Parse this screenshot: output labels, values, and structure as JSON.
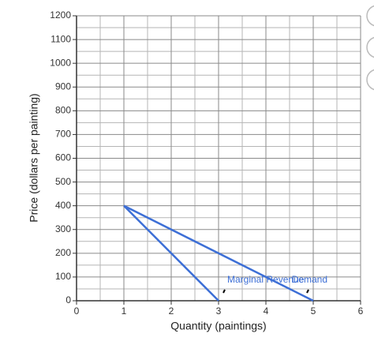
{
  "chart_data": {
    "type": "line",
    "xlabel": "Quantity (paintings)",
    "ylabel": "Price (dollars per painting)",
    "xlim": [
      0,
      6
    ],
    "xticks": [
      0,
      1,
      2,
      3,
      4,
      5,
      6
    ],
    "ylim": [
      0,
      1200
    ],
    "yticks": [
      0,
      100,
      200,
      300,
      400,
      500,
      600,
      700,
      800,
      900,
      1000,
      1100,
      1200
    ],
    "grid": true,
    "series": [
      {
        "name": "Marginal Revenue",
        "color": "#3d6fd6",
        "x": [
          1,
          3
        ],
        "values": [
          400,
          0
        ]
      },
      {
        "name": "Demand",
        "color": "#3d6fd6",
        "x": [
          1,
          5
        ],
        "values": [
          400,
          0
        ]
      }
    ]
  }
}
